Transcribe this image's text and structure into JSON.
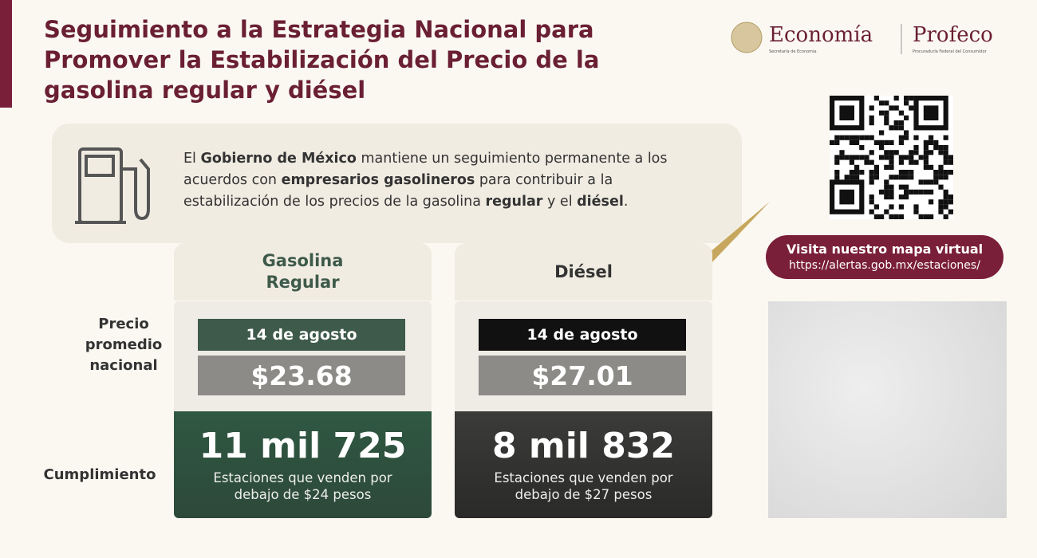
{
  "header": {
    "title": "Seguimiento a la Estrategia Nacional para Promover la Estabilización del Precio de la gasolina regular y diésel"
  },
  "logos": {
    "economia": "Economía",
    "economia_sub": "Secretaría de Economía",
    "profeco": "Profeco",
    "profeco_sub": "Procuraduría Federal del Consumidor"
  },
  "intro": [
    {
      "text": "El ",
      "bold": false
    },
    {
      "text": "Gobierno de México",
      "bold": true
    },
    {
      "text": " mantiene un seguimiento permanente a los acuerdos con ",
      "bold": false
    },
    {
      "text": "empresarios gasolineros",
      "bold": true
    },
    {
      "text": " para contribuir a la estabilización de los precios de la gasolina ",
      "bold": false
    },
    {
      "text": "regular",
      "bold": true
    },
    {
      "text": " y el ",
      "bold": false
    },
    {
      "text": "diésel",
      "bold": true
    },
    {
      "text": ".",
      "bold": false
    }
  ],
  "row_labels": {
    "price": "Precio promedio nacional",
    "compliance": "Cumplimiento"
  },
  "columns": [
    {
      "name": "Gasolina Regular",
      "date": "14 de agosto",
      "price": "$23.68",
      "count": "11 mil 725",
      "caption": "Estaciones que venden por debajo de $24 pesos",
      "date_color": "#3e5a4a",
      "count_color": "#2f5842"
    },
    {
      "name": "Diésel",
      "date": "14 de agosto",
      "price": "$27.01",
      "count": "8 mil 832",
      "caption": "Estaciones que venden por debajo de $27 pesos",
      "date_color": "#111111",
      "count_color": "#3b3b39"
    }
  ],
  "map_link": {
    "title": "Visita nuestro mapa virtual",
    "url": "https://alertas.gob.mx/estaciones/"
  }
}
